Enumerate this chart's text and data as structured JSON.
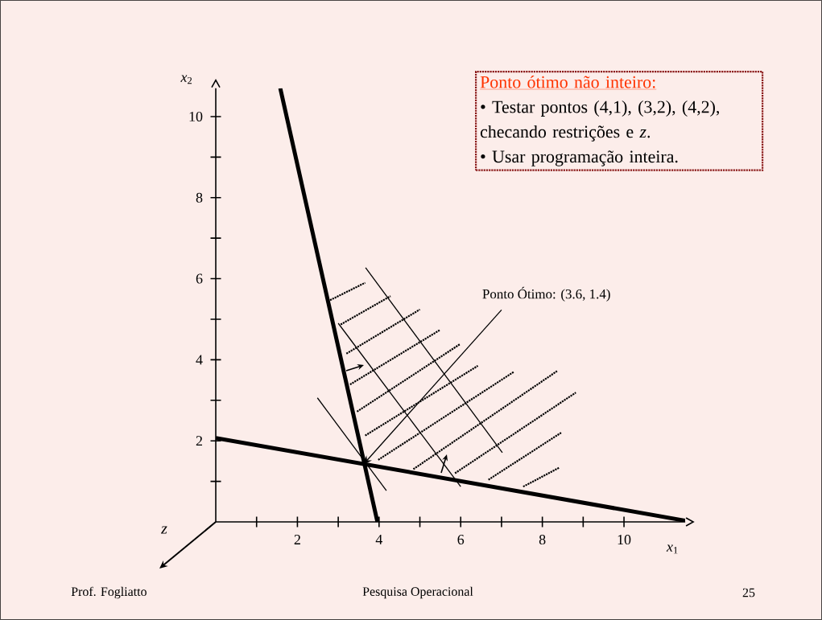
{
  "chart_data": {
    "type": "line",
    "xlabel": "*x*$_{1}$",
    "ylabel": "*x*$_{2}$",
    "xlim": [
      0,
      11.5
    ],
    "ylim": [
      0,
      10.7
    ],
    "xticks": [
      {
        "value": 1,
        "label": null
      },
      2,
      {
        "value": 3,
        "label": null
      },
      4,
      {
        "value": 5,
        "label": null
      },
      6,
      {
        "value": 7,
        "label": null
      },
      8,
      {
        "value": 9,
        "label": null
      },
      10
    ],
    "yticks": [
      {
        "value": 1,
        "label": null
      },
      2,
      {
        "value": 3,
        "label": null
      },
      4,
      {
        "value": 5,
        "label": null
      },
      6,
      {
        "value": 7,
        "label": null
      },
      8,
      {
        "value": 9,
        "label": null
      },
      10
    ],
    "grid": false,
    "marker": "none",
    "line_style": "solid",
    "series": [
      {
        "color": "#000000",
        "x": [
          1.58,
          3.96
        ],
        "values": [
          10.7,
          0
        ]
      },
      {
        "color": "#000000",
        "x": [
          0,
          11.5
        ],
        "values": [
          2.07,
          0.03
        ]
      },
      {
        "color": "#000000",
        "x": [
          2.49,
          4.18
        ],
        "values": [
          3.06,
          0.77
        ]
      },
      {
        "color": "#000000",
        "x": [
          3.0,
          6.0
        ],
        "values": [
          4.9,
          0.87
        ]
      },
      {
        "color": "#000000",
        "x": [
          3.67,
          7.02
        ],
        "values": [
          6.27,
          1.71
        ]
      },
      {
        "color": "#000000",
        "line_style": "dotted",
        "x": [
          2.8,
          3.66
        ],
        "values": [
          5.47,
          5.9
        ]
      },
      {
        "color": "#000000",
        "line_style": "dotted",
        "x": [
          3.06,
          4.28
        ],
        "values": [
          4.87,
          5.57
        ]
      },
      {
        "color": "#000000",
        "line_style": "dotted",
        "x": [
          3.2,
          5.0
        ],
        "values": [
          4.15,
          5.24
        ]
      },
      {
        "color": "#000000",
        "line_style": "dotted",
        "x": [
          3.29,
          5.5
        ],
        "values": [
          3.39,
          4.74
        ]
      },
      {
        "color": "#000000",
        "line_style": "dotted",
        "x": [
          3.46,
          5.99
        ],
        "values": [
          2.72,
          4.39
        ]
      },
      {
        "color": "#000000",
        "line_style": "dotted",
        "x": [
          3.66,
          6.42
        ],
        "values": [
          2.13,
          3.85
        ]
      },
      {
        "color": "#000000",
        "line_style": "dotted",
        "x": [
          3.98,
          7.3
        ],
        "values": [
          1.53,
          3.7
        ]
      },
      {
        "color": "#000000",
        "line_style": "dotted",
        "x": [
          4.84,
          8.36
        ],
        "values": [
          1.3,
          3.72
        ]
      },
      {
        "color": "#000000",
        "line_style": "dotted",
        "x": [
          5.86,
          8.82
        ],
        "values": [
          1.2,
          3.19
        ]
      },
      {
        "color": "#000000",
        "line_style": "dotted",
        "x": [
          6.68,
          8.46
        ],
        "values": [
          1.04,
          2.2
        ]
      },
      {
        "color": "#000000",
        "line_style": "dotted",
        "x": [
          7.53,
          8.42
        ],
        "values": [
          0.87,
          1.34
        ]
      }
    ],
    "annotations": [
      "Ponto ótimo não inteiro:",
      "• Testar pontos (4,1), (3,2), (4,2), checando restrições e *z*.",
      "• Usar programação inteira.",
      {
        "text": "Ponto Ótimo: (3.6, 1.4)",
        "x": 3.6,
        "y": 1.4
      },
      "z",
      "Prof. Fogliatto",
      "Pesquisa Operacional",
      "25"
    ]
  }
}
